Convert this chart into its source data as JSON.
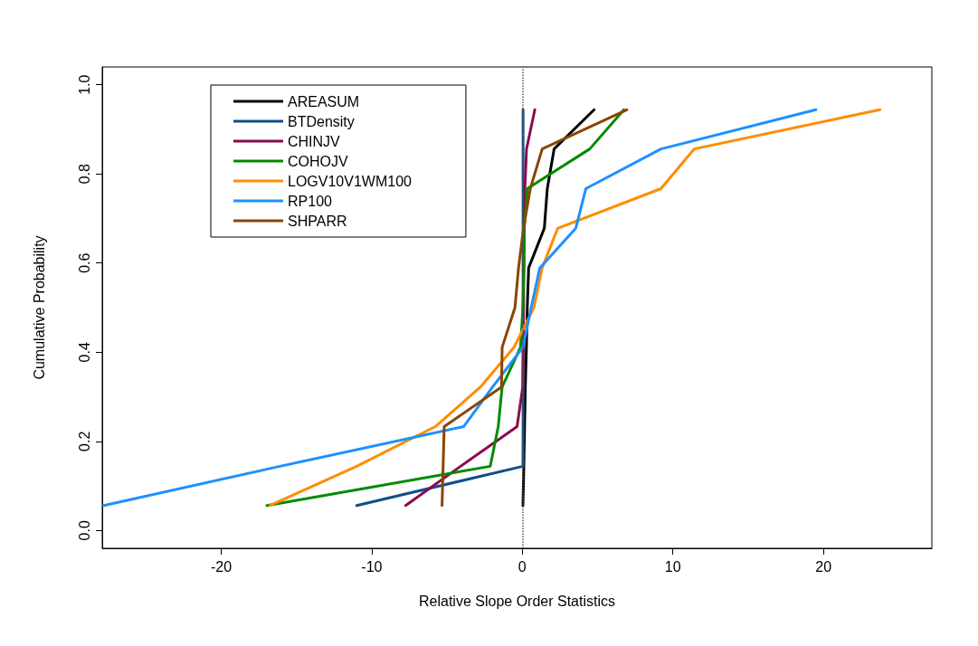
{
  "chart_data": {
    "type": "line",
    "xlabel": "Relative Slope Order Statistics",
    "ylabel": "Cumulative Probability",
    "xlim": [
      -27.9,
      27.2
    ],
    "ylim": [
      -0.04,
      1.04
    ],
    "xticks": [
      -20,
      -10,
      0,
      10,
      20
    ],
    "yticks": [
      {
        "value": 0,
        "label": "0.0"
      },
      {
        "value": 0.2,
        "label": "0.2"
      },
      {
        "value": 0.4,
        "label": "0.4"
      },
      {
        "value": 0.6,
        "label": "0.6"
      },
      {
        "value": 0.8,
        "label": "0.8"
      },
      {
        "value": 1,
        "label": "1.0"
      }
    ],
    "grid": false,
    "legend": "top left",
    "marker": "none",
    "line_style": "solid",
    "ref_lines": [
      {
        "axis": "x",
        "value": 0,
        "label": null,
        "color": "#555555",
        "line_style": "dotted"
      }
    ],
    "series": [
      {
        "name": "AREASUM",
        "color": "#000000",
        "x": [
          0.04,
          0.1,
          0.15,
          0.2,
          0.27,
          0.33,
          0.42,
          1.46,
          1.66,
          2.11,
          4.77
        ],
        "values": [
          0.056,
          0.144,
          0.233,
          0.322,
          0.411,
          0.5,
          0.589,
          0.678,
          0.767,
          0.856,
          0.944
        ]
      },
      {
        "name": "BTDensity",
        "color": "#104e8b",
        "x": [
          -11.0,
          0.04,
          0.05,
          0.05,
          0.05,
          0.05,
          0.05,
          0.05,
          0.05,
          0.05,
          0.05
        ],
        "values": [
          0.056,
          0.144,
          0.233,
          0.322,
          0.411,
          0.5,
          0.589,
          0.678,
          0.767,
          0.856,
          0.944
        ]
      },
      {
        "name": "CHINJV",
        "color": "#8b0a50",
        "x": [
          -7.75,
          -4.1,
          -0.35,
          0.03,
          0.06,
          0.08,
          0.1,
          0.13,
          0.17,
          0.28,
          0.83
        ],
        "values": [
          0.056,
          0.144,
          0.233,
          0.322,
          0.411,
          0.5,
          0.589,
          0.678,
          0.767,
          0.856,
          0.944
        ]
      },
      {
        "name": "COHOJV",
        "color": "#008b00",
        "x": [
          -16.96,
          -2.13,
          -1.6,
          -1.34,
          -0.12,
          0.04,
          0.1,
          0.13,
          0.33,
          4.48,
          6.75
        ],
        "values": [
          0.056,
          0.144,
          0.233,
          0.322,
          0.411,
          0.5,
          0.589,
          0.678,
          0.767,
          0.856,
          0.944
        ]
      },
      {
        "name": "LOGV10V1WM100",
        "color": "#ff8c00",
        "x": [
          -16.76,
          -11.0,
          -5.78,
          -2.78,
          -0.55,
          0.77,
          1.32,
          2.35,
          9.21,
          11.42,
          23.75
        ],
        "values": [
          0.056,
          0.144,
          0.233,
          0.322,
          0.411,
          0.5,
          0.589,
          0.678,
          0.767,
          0.856,
          0.944
        ]
      },
      {
        "name": "RP100",
        "color": "#1e90ff",
        "x": [
          -27.8,
          -16.1,
          -3.9,
          -1.97,
          0.04,
          0.59,
          1.16,
          3.55,
          4.22,
          9.21,
          19.5
        ],
        "values": [
          0.056,
          0.144,
          0.233,
          0.322,
          0.411,
          0.5,
          0.589,
          0.678,
          0.767,
          0.856,
          0.944
        ]
      },
      {
        "name": "SHPARR",
        "color": "#8b4500",
        "x": [
          -5.33,
          -5.26,
          -5.19,
          -1.38,
          -1.34,
          -0.49,
          -0.25,
          0.08,
          0.53,
          1.32,
          6.94
        ],
        "values": [
          0.056,
          0.144,
          0.233,
          0.322,
          0.411,
          0.5,
          0.589,
          0.678,
          0.767,
          0.856,
          0.944
        ]
      }
    ]
  }
}
